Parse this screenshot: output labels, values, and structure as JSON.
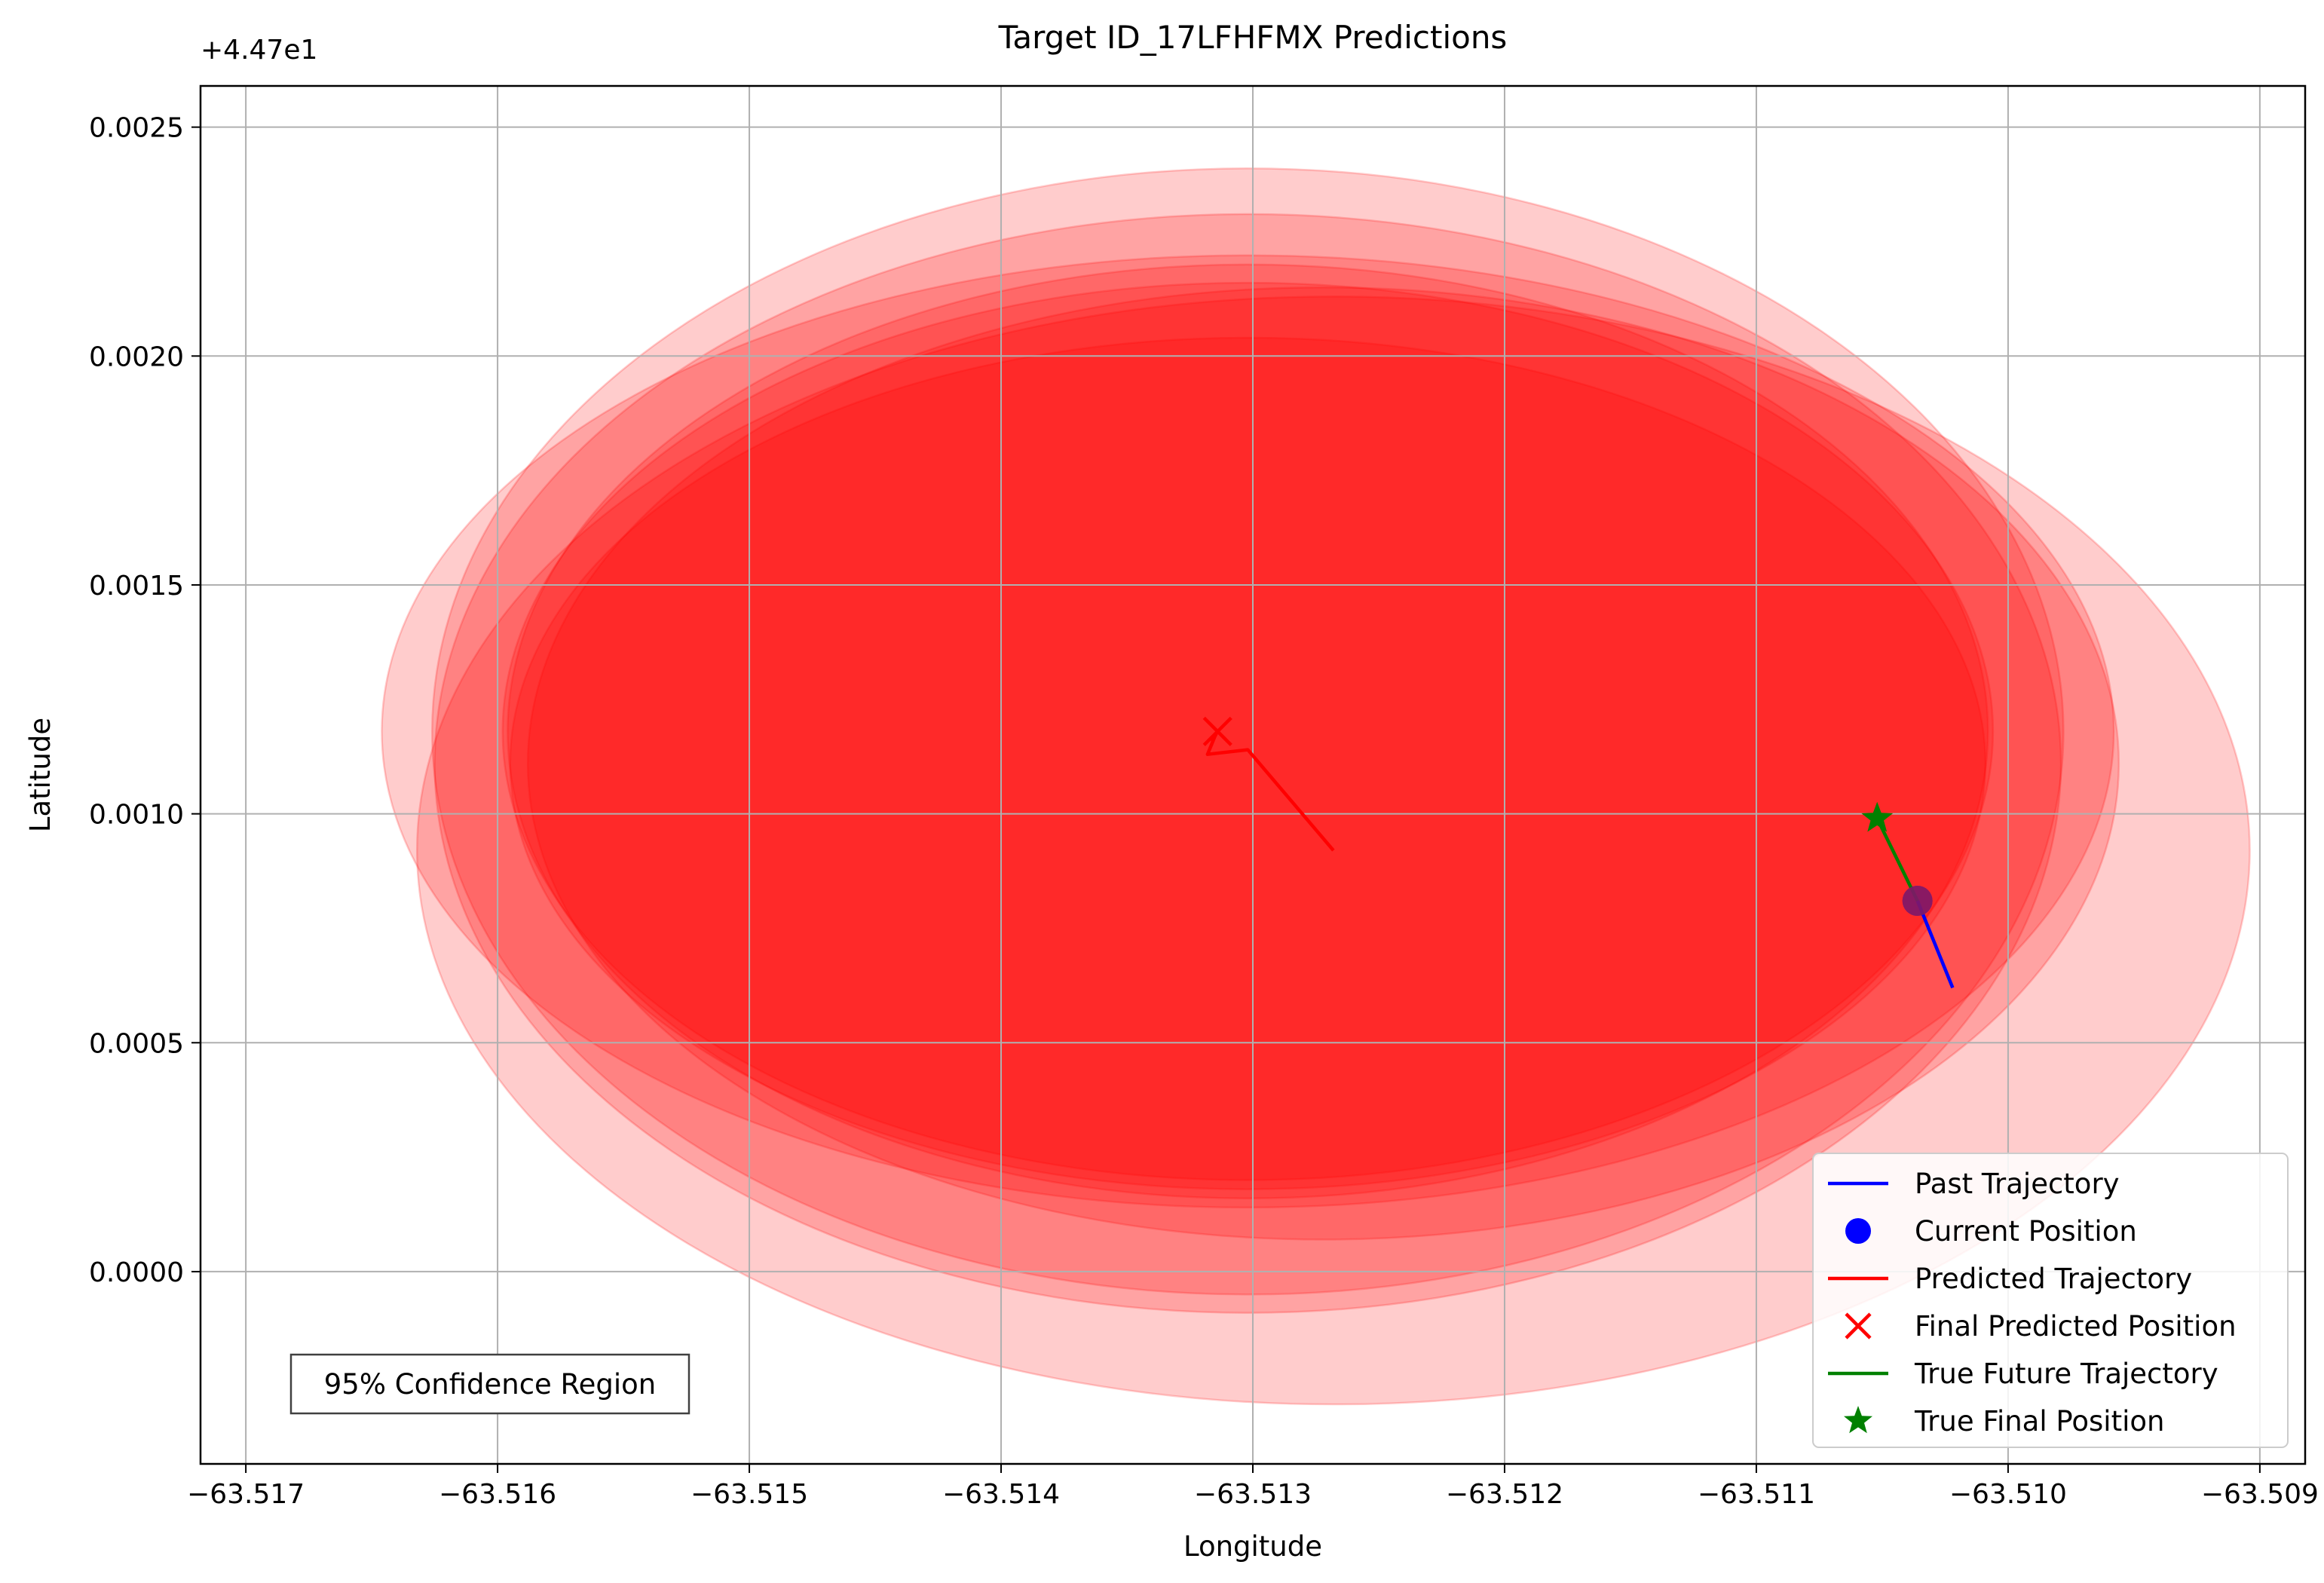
{
  "chart_data": {
    "type": "scatter",
    "title": "Target ID_17LFHFMX Predictions",
    "xlabel": "Longitude",
    "ylabel": "Latitude",
    "y_offset_text": "+4.47e1",
    "xlim": [
      -63.51718,
      -63.50882
    ],
    "ylim": [
      -0.00042,
      0.00259
    ],
    "xticks": [
      -63.517,
      -63.516,
      -63.515,
      -63.514,
      -63.513,
      -63.512,
      -63.511,
      -63.51,
      -63.509
    ],
    "xtick_labels": [
      "−63.517",
      "−63.516",
      "−63.515",
      "−63.514",
      "−63.513",
      "−63.512",
      "−63.511",
      "−63.510",
      "−63.509"
    ],
    "yticks": [
      0.0,
      0.0005,
      0.001,
      0.0015,
      0.002,
      0.0025
    ],
    "ytick_labels": [
      "0.0000",
      "0.0005",
      "0.0010",
      "0.0015",
      "0.0020",
      "0.0025"
    ],
    "grid": true,
    "legend_position": "lower right",
    "annotation": "95% Confidence Region",
    "confidence_ellipses": [
      {
        "cx": -63.51302,
        "cy": 0.00118,
        "rx": 0.00344,
        "ry": 0.00104
      },
      {
        "cx": -63.51272,
        "cy": 0.00111,
        "rx": 0.00316,
        "ry": 0.00104
      },
      {
        "cx": -63.51302,
        "cy": 0.00118,
        "rx": 0.00296,
        "ry": 0.00098
      },
      {
        "cx": -63.51302,
        "cy": 0.00118,
        "rx": 0.00324,
        "ry": 0.00123
      },
      {
        "cx": -63.51302,
        "cy": 0.00111,
        "rx": 0.00323,
        "ry": 0.0012
      },
      {
        "cx": -63.51302,
        "cy": 0.00111,
        "rx": 0.00293,
        "ry": 0.00093
      },
      {
        "cx": -63.51302,
        "cy": 0.00118,
        "rx": 0.00294,
        "ry": 0.00102
      },
      {
        "cx": -63.51268,
        "cy": 0.00092,
        "rx": 0.00364,
        "ry": 0.00121
      }
    ],
    "series": [
      {
        "name": "Past Trajectory",
        "kind": "line",
        "color": "#0000ff",
        "x": [
          -63.51022,
          -63.51036
        ],
        "y": [
          0.00062,
          0.00081
        ]
      },
      {
        "name": "Current Position",
        "kind": "marker",
        "marker": "circle",
        "color": "#0000ff",
        "x": [
          -63.51036
        ],
        "y": [
          0.00081
        ]
      },
      {
        "name": "Predicted Trajectory",
        "kind": "line",
        "color": "#ff0000",
        "x": [
          -63.51268,
          -63.51302,
          -63.51318,
          -63.51315,
          -63.51316,
          -63.51314
        ],
        "y": [
          0.00092,
          0.00114,
          0.00113,
          0.00117,
          0.00116,
          0.00118
        ]
      },
      {
        "name": "Final Predicted Position",
        "kind": "marker",
        "marker": "x",
        "color": "#ff0000",
        "x": [
          -63.51314
        ],
        "y": [
          0.00118
        ]
      },
      {
        "name": "True Future Trajectory",
        "kind": "line",
        "color": "#008000",
        "x": [
          -63.51036,
          -63.51052
        ],
        "y": [
          0.00081,
          0.00099
        ]
      },
      {
        "name": "True Final Position",
        "kind": "marker",
        "marker": "star",
        "color": "#008000",
        "x": [
          -63.51052
        ],
        "y": [
          0.00099
        ]
      }
    ]
  }
}
